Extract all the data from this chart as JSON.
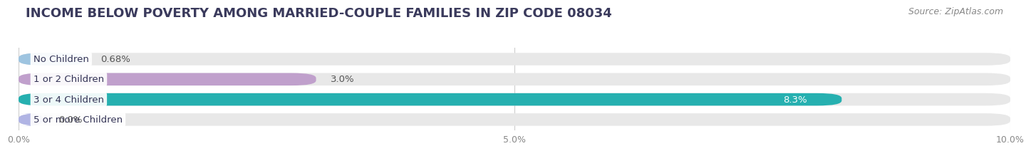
{
  "title": "INCOME BELOW POVERTY AMONG MARRIED-COUPLE FAMILIES IN ZIP CODE 08034",
  "source": "Source: ZipAtlas.com",
  "categories": [
    "No Children",
    "1 or 2 Children",
    "3 or 4 Children",
    "5 or more Children"
  ],
  "values": [
    0.68,
    3.0,
    8.3,
    0.0
  ],
  "bar_colors": [
    "#9ec4e0",
    "#c0a0cc",
    "#26b0b0",
    "#b0b4e4"
  ],
  "bar_bg_color": "#e8e8e8",
  "xlim": [
    0,
    10.0
  ],
  "xticks": [
    0.0,
    5.0,
    10.0
  ],
  "xtick_labels": [
    "0.0%",
    "5.0%",
    "10.0%"
  ],
  "value_labels": [
    "0.68%",
    "3.0%",
    "8.3%",
    "0.0%"
  ],
  "value_inside": [
    false,
    false,
    true,
    false
  ],
  "bar_height": 0.62,
  "bg_color": "#ffffff",
  "title_color": "#3a3a5c",
  "title_fontsize": 13,
  "label_fontsize": 9.5,
  "value_fontsize": 9.5,
  "source_fontsize": 9
}
